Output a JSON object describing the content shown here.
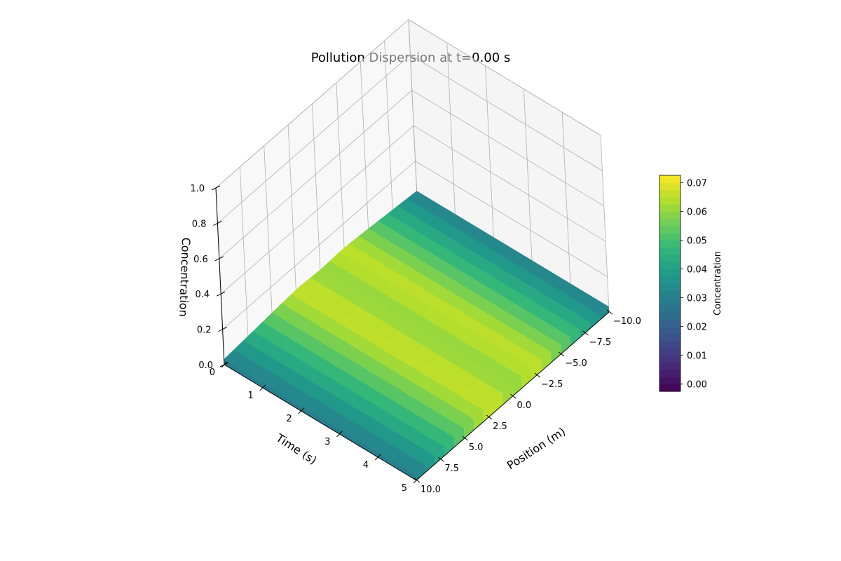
{
  "chart_data": {
    "type": "surface",
    "title": "Pollution Dispersion at t=0.00 s",
    "xlabel": "Position (m)",
    "ylabel": "Time (s)",
    "zlabel": "Concentration",
    "xlim": [
      -10.0,
      10.0
    ],
    "ylim": [
      0,
      5
    ],
    "zlim": [
      0.0,
      1.0
    ],
    "x_ticks": [
      "−10.0",
      "−7.5",
      "−5.0",
      "−2.5",
      "0.0",
      "2.5",
      "5.0",
      "7.5",
      "10.0"
    ],
    "y_ticks": [
      "0",
      "1",
      "2",
      "3",
      "4",
      "5"
    ],
    "z_ticks": [
      "0.0",
      "0.2",
      "0.4",
      "0.6",
      "0.8",
      "1.0"
    ],
    "surface": {
      "x": [
        -10,
        -9,
        -8,
        -7,
        -6,
        -5,
        -4,
        -3,
        -2,
        -1,
        0,
        1,
        2,
        3,
        4,
        5,
        6,
        7,
        8,
        9,
        10
      ],
      "concentration": [
        0.03,
        0.035,
        0.04,
        0.045,
        0.05,
        0.055,
        0.06,
        0.064,
        0.067,
        0.063,
        0.06,
        0.062,
        0.066,
        0.064,
        0.06,
        0.055,
        0.05,
        0.045,
        0.04,
        0.035,
        0.03
      ],
      "constant_over_time": true
    },
    "colorbar": {
      "label": "Concentration",
      "colormap": "viridis",
      "range": [
        -0.0025,
        0.0725
      ],
      "ticks": [
        "0.00",
        "0.01",
        "0.02",
        "0.03",
        "0.04",
        "0.05",
        "0.06",
        "0.07"
      ],
      "tick_values": [
        0.0,
        0.01,
        0.02,
        0.03,
        0.04,
        0.05,
        0.06,
        0.07
      ]
    }
  }
}
